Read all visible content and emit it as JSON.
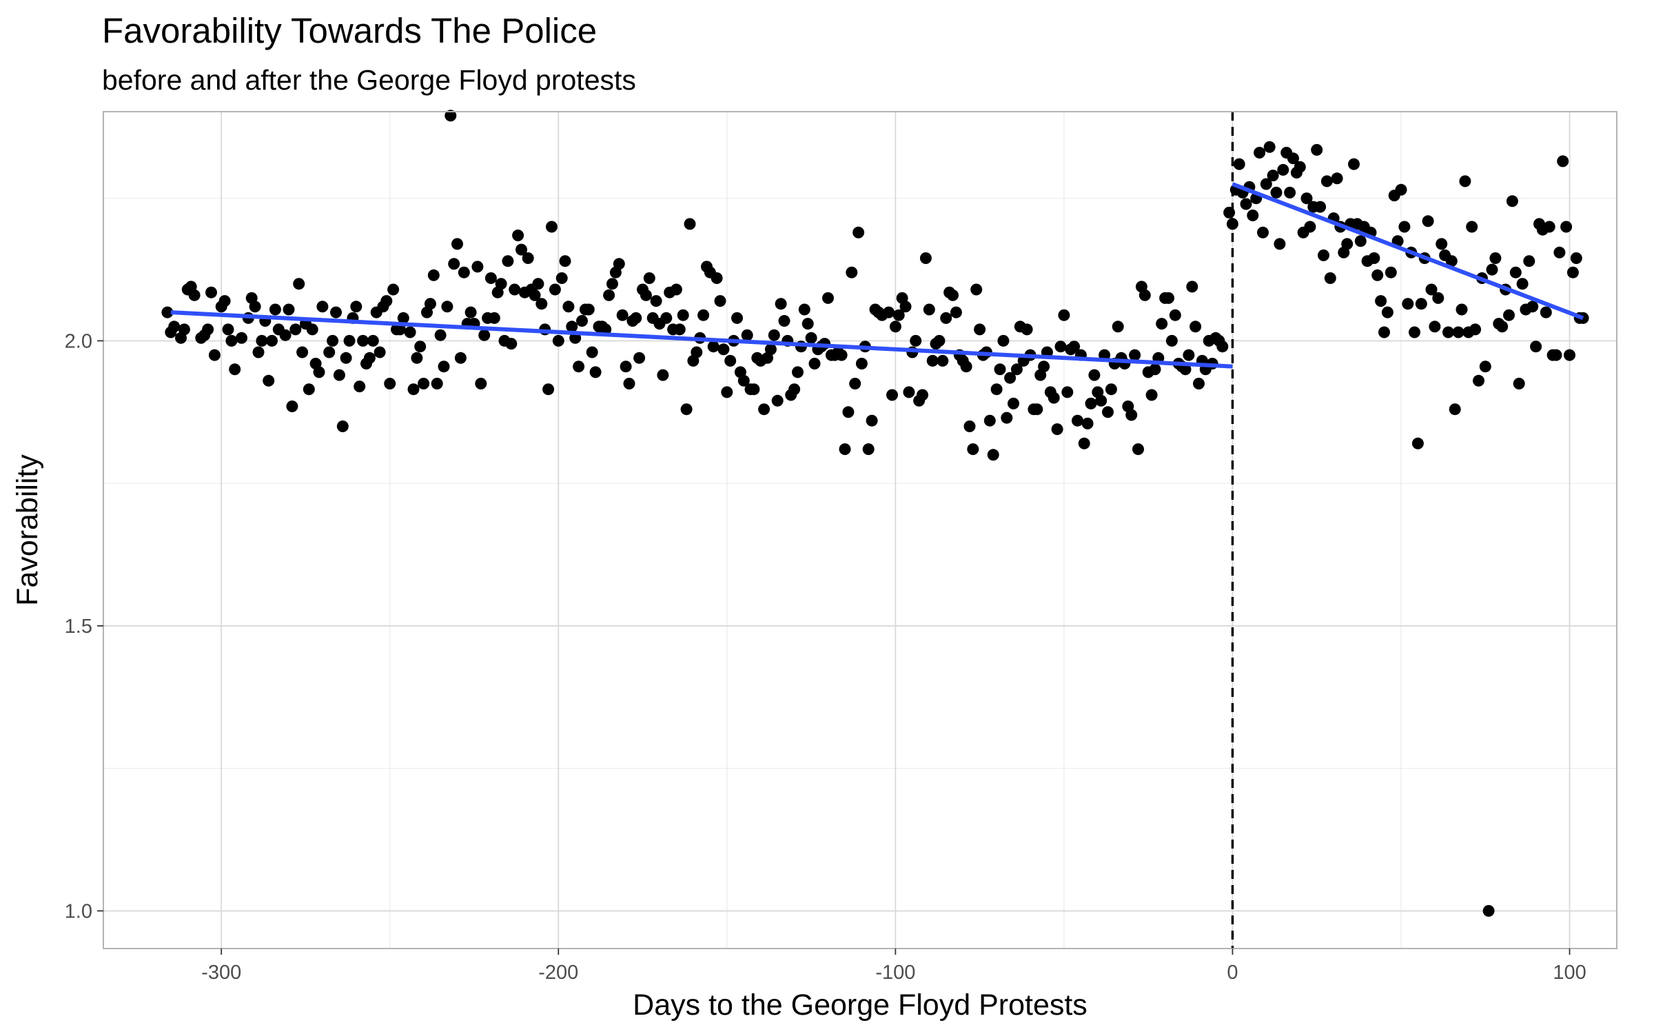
{
  "chart_data": {
    "type": "scatter",
    "title": "Favorability Towards The Police",
    "subtitle": "before and after the George Floyd protests",
    "xlabel": "Days to the George Floyd Protests",
    "ylabel": "Favorability",
    "xlim": [
      -335,
      114
    ],
    "ylim": [
      0.934,
      2.402
    ],
    "x_ticks": [
      -300,
      -200,
      -100,
      0,
      100
    ],
    "x_tick_labels": [
      "-300",
      "-200",
      "-100",
      "0",
      "100"
    ],
    "y_ticks": [
      1.0,
      1.5,
      2.0
    ],
    "y_tick_labels": [
      "1.0",
      "1.5",
      "2.0"
    ],
    "grid": true,
    "reference_line": {
      "x": 0,
      "style": "dashed",
      "color": "#000000"
    },
    "colors": {
      "points": "#000000",
      "trend": "#3050f8",
      "panel_border": "#b3b3b3",
      "grid_major": "#d9d9d9",
      "grid_minor": "#ebebeb"
    },
    "trend_lines": [
      {
        "x": [
          -315,
          0
        ],
        "y": [
          2.05,
          1.955
        ]
      },
      {
        "x": [
          0,
          104
        ],
        "y": [
          2.275,
          2.04
        ]
      }
    ],
    "points": [
      [
        -316,
        2.05
      ],
      [
        -315,
        2.015
      ],
      [
        -314,
        2.025
      ],
      [
        -312,
        2.005
      ],
      [
        -311,
        2.02
      ],
      [
        -310,
        2.09
      ],
      [
        -309,
        2.095
      ],
      [
        -308,
        2.08
      ],
      [
        -306,
        2.005
      ],
      [
        -305,
        2.01
      ],
      [
        -304,
        2.02
      ],
      [
        -303,
        2.085
      ],
      [
        -302,
        1.975
      ],
      [
        -300,
        2.06
      ],
      [
        -299,
        2.07
      ],
      [
        -298,
        2.02
      ],
      [
        -297,
        2.0
      ],
      [
        -296,
        1.95
      ],
      [
        -294,
        2.005
      ],
      [
        -292,
        2.04
      ],
      [
        -291,
        2.075
      ],
      [
        -290,
        2.06
      ],
      [
        -289,
        1.98
      ],
      [
        -288,
        2.0
      ],
      [
        -287,
        2.035
      ],
      [
        -286,
        1.93
      ],
      [
        -285,
        2.0
      ],
      [
        -284,
        2.055
      ],
      [
        -283,
        2.02
      ],
      [
        -281,
        2.01
      ],
      [
        -280,
        2.055
      ],
      [
        -279,
        1.885
      ],
      [
        -278,
        2.02
      ],
      [
        -277,
        2.1
      ],
      [
        -276,
        1.98
      ],
      [
        -275,
        2.03
      ],
      [
        -274,
        1.915
      ],
      [
        -273,
        2.02
      ],
      [
        -272,
        1.96
      ],
      [
        -271,
        1.945
      ],
      [
        -270,
        2.06
      ],
      [
        -268,
        1.98
      ],
      [
        -267,
        2.0
      ],
      [
        -266,
        2.05
      ],
      [
        -265,
        1.94
      ],
      [
        -264,
        1.85
      ],
      [
        -263,
        1.97
      ],
      [
        -262,
        2.0
      ],
      [
        -261,
        2.04
      ],
      [
        -260,
        2.06
      ],
      [
        -259,
        1.92
      ],
      [
        -258,
        2.0
      ],
      [
        -257,
        1.96
      ],
      [
        -256,
        1.97
      ],
      [
        -255,
        2.0
      ],
      [
        -254,
        2.05
      ],
      [
        -253,
        1.98
      ],
      [
        -252,
        2.06
      ],
      [
        -251,
        2.07
      ],
      [
        -250,
        1.925
      ],
      [
        -249,
        2.09
      ],
      [
        -248,
        2.02
      ],
      [
        -247,
        2.02
      ],
      [
        -246,
        2.04
      ],
      [
        -244,
        2.015
      ],
      [
        -243,
        1.915
      ],
      [
        -242,
        1.97
      ],
      [
        -241,
        1.99
      ],
      [
        -240,
        1.925
      ],
      [
        -239,
        2.05
      ],
      [
        -238,
        2.065
      ],
      [
        -237,
        2.115
      ],
      [
        -236,
        1.925
      ],
      [
        -235,
        2.01
      ],
      [
        -234,
        1.955
      ],
      [
        -233,
        2.06
      ],
      [
        -232,
        2.395
      ],
      [
        -231,
        2.135
      ],
      [
        -230,
        2.17
      ],
      [
        -229,
        1.97
      ],
      [
        -228,
        2.12
      ],
      [
        -227,
        2.03
      ],
      [
        -226,
        2.05
      ],
      [
        -225,
        2.03
      ],
      [
        -224,
        2.13
      ],
      [
        -223,
        1.925
      ],
      [
        -222,
        2.01
      ],
      [
        -221,
        2.04
      ],
      [
        -220,
        2.11
      ],
      [
        -219,
        2.04
      ],
      [
        -218,
        2.085
      ],
      [
        -217,
        2.1
      ],
      [
        -216,
        2.0
      ],
      [
        -215,
        2.14
      ],
      [
        -214,
        1.995
      ],
      [
        -213,
        2.09
      ],
      [
        -212,
        2.185
      ],
      [
        -211,
        2.16
      ],
      [
        -210,
        2.085
      ],
      [
        -209,
        2.145
      ],
      [
        -208,
        2.09
      ],
      [
        -207,
        2.08
      ],
      [
        -206,
        2.1
      ],
      [
        -205,
        2.065
      ],
      [
        -204,
        2.02
      ],
      [
        -203,
        1.915
      ],
      [
        -202,
        2.2
      ],
      [
        -201,
        2.09
      ],
      [
        -200,
        2.0
      ],
      [
        -199,
        2.11
      ],
      [
        -198,
        2.14
      ],
      [
        -197,
        2.06
      ],
      [
        -196,
        2.025
      ],
      [
        -195,
        2.005
      ],
      [
        -194,
        1.955
      ],
      [
        -193,
        2.035
      ],
      [
        -192,
        2.055
      ],
      [
        -191,
        2.055
      ],
      [
        -190,
        1.98
      ],
      [
        -189,
        1.945
      ],
      [
        -188,
        2.025
      ],
      [
        -187,
        2.025
      ],
      [
        -186,
        2.02
      ],
      [
        -185,
        2.08
      ],
      [
        -184,
        2.1
      ],
      [
        -183,
        2.12
      ],
      [
        -182,
        2.135
      ],
      [
        -181,
        2.045
      ],
      [
        -180,
        1.955
      ],
      [
        -179,
        1.925
      ],
      [
        -178,
        2.035
      ],
      [
        -177,
        2.04
      ],
      [
        -176,
        1.97
      ],
      [
        -175,
        2.09
      ],
      [
        -174,
        2.08
      ],
      [
        -173,
        2.11
      ],
      [
        -172,
        2.04
      ],
      [
        -171,
        2.07
      ],
      [
        -170,
        2.03
      ],
      [
        -169,
        1.94
      ],
      [
        -168,
        2.04
      ],
      [
        -167,
        2.085
      ],
      [
        -166,
        2.02
      ],
      [
        -165,
        2.09
      ],
      [
        -164,
        2.02
      ],
      [
        -163,
        2.045
      ],
      [
        -162,
        1.88
      ],
      [
        -161,
        2.205
      ],
      [
        -160,
        1.965
      ],
      [
        -159,
        1.98
      ],
      [
        -158,
        2.005
      ],
      [
        -157,
        2.045
      ],
      [
        -156,
        2.13
      ],
      [
        -155,
        2.12
      ],
      [
        -154,
        1.99
      ],
      [
        -153,
        2.11
      ],
      [
        -152,
        2.07
      ],
      [
        -151,
        1.985
      ],
      [
        -150,
        1.91
      ],
      [
        -149,
        1.965
      ],
      [
        -148,
        2.0
      ],
      [
        -147,
        2.04
      ],
      [
        -146,
        1.945
      ],
      [
        -145,
        1.93
      ],
      [
        -144,
        2.01
      ],
      [
        -143,
        1.915
      ],
      [
        -142,
        1.915
      ],
      [
        -141,
        1.97
      ],
      [
        -140,
        1.965
      ],
      [
        -139,
        1.88
      ],
      [
        -138,
        1.97
      ],
      [
        -137,
        1.985
      ],
      [
        -136,
        2.01
      ],
      [
        -135,
        1.895
      ],
      [
        -134,
        2.065
      ],
      [
        -133,
        2.035
      ],
      [
        -132,
        2.0
      ],
      [
        -131,
        1.905
      ],
      [
        -130,
        1.915
      ],
      [
        -129,
        1.945
      ],
      [
        -128,
        1.99
      ],
      [
        -127,
        2.055
      ],
      [
        -126,
        2.03
      ],
      [
        -125,
        2.005
      ],
      [
        -124,
        1.96
      ],
      [
        -123,
        1.985
      ],
      [
        -122,
        1.99
      ],
      [
        -121,
        1.995
      ],
      [
        -120,
        2.075
      ],
      [
        -119,
        1.975
      ],
      [
        -118,
        1.975
      ],
      [
        -117,
        1.98
      ],
      [
        -116,
        1.975
      ],
      [
        -115,
        1.81
      ],
      [
        -114,
        1.875
      ],
      [
        -113,
        2.12
      ],
      [
        -112,
        1.925
      ],
      [
        -111,
        2.19
      ],
      [
        -110,
        1.96
      ],
      [
        -109,
        1.99
      ],
      [
        -108,
        1.81
      ],
      [
        -107,
        1.86
      ],
      [
        -106,
        2.055
      ],
      [
        -105,
        2.05
      ],
      [
        -104,
        2.045
      ],
      [
        -102,
        2.05
      ],
      [
        -101,
        1.905
      ],
      [
        -100,
        2.025
      ],
      [
        -99,
        2.045
      ],
      [
        -98,
        2.075
      ],
      [
        -97,
        2.06
      ],
      [
        -96,
        1.91
      ],
      [
        -95,
        1.98
      ],
      [
        -94,
        2.0
      ],
      [
        -93,
        1.895
      ],
      [
        -92,
        1.905
      ],
      [
        -91,
        2.145
      ],
      [
        -90,
        2.055
      ],
      [
        -89,
        1.965
      ],
      [
        -88,
        1.995
      ],
      [
        -87,
        2.0
      ],
      [
        -86,
        1.965
      ],
      [
        -85,
        2.04
      ],
      [
        -84,
        2.085
      ],
      [
        -83,
        2.08
      ],
      [
        -82,
        2.05
      ],
      [
        -81,
        1.975
      ],
      [
        -80,
        1.965
      ],
      [
        -79,
        1.955
      ],
      [
        -78,
        1.85
      ],
      [
        -77,
        1.81
      ],
      [
        -76,
        2.09
      ],
      [
        -75,
        2.02
      ],
      [
        -74,
        1.975
      ],
      [
        -73,
        1.98
      ],
      [
        -72,
        1.86
      ],
      [
        -71,
        1.8
      ],
      [
        -70,
        1.915
      ],
      [
        -69,
        1.95
      ],
      [
        -68,
        2.0
      ],
      [
        -67,
        1.865
      ],
      [
        -66,
        1.935
      ],
      [
        -65,
        1.89
      ],
      [
        -64,
        1.95
      ],
      [
        -63,
        2.025
      ],
      [
        -62,
        1.965
      ],
      [
        -61,
        2.02
      ],
      [
        -60,
        1.975
      ],
      [
        -59,
        1.88
      ],
      [
        -58,
        1.88
      ],
      [
        -57,
        1.94
      ],
      [
        -56,
        1.955
      ],
      [
        -55,
        1.98
      ],
      [
        -54,
        1.91
      ],
      [
        -53,
        1.9
      ],
      [
        -52,
        1.845
      ],
      [
        -51,
        1.99
      ],
      [
        -50,
        2.045
      ],
      [
        -49,
        1.91
      ],
      [
        -48,
        1.985
      ],
      [
        -47,
        1.99
      ],
      [
        -46,
        1.86
      ],
      [
        -45,
        1.975
      ],
      [
        -44,
        1.82
      ],
      [
        -43,
        1.855
      ],
      [
        -42,
        1.89
      ],
      [
        -41,
        1.94
      ],
      [
        -40,
        1.91
      ],
      [
        -39,
        1.895
      ],
      [
        -38,
        1.975
      ],
      [
        -37,
        1.875
      ],
      [
        -36,
        1.915
      ],
      [
        -35,
        1.96
      ],
      [
        -34,
        2.025
      ],
      [
        -33,
        1.97
      ],
      [
        -32,
        1.96
      ],
      [
        -31,
        1.885
      ],
      [
        -30,
        1.87
      ],
      [
        -29,
        1.975
      ],
      [
        -28,
        1.81
      ],
      [
        -27,
        2.095
      ],
      [
        -26,
        2.08
      ],
      [
        -25,
        1.945
      ],
      [
        -24,
        1.905
      ],
      [
        -23,
        1.95
      ],
      [
        -22,
        1.97
      ],
      [
        -21,
        2.03
      ],
      [
        -20,
        2.075
      ],
      [
        -19,
        2.075
      ],
      [
        -18,
        2.0
      ],
      [
        -17,
        2.045
      ],
      [
        -16,
        1.96
      ],
      [
        -15,
        1.955
      ],
      [
        -14,
        1.95
      ],
      [
        -13,
        1.975
      ],
      [
        -12,
        2.095
      ],
      [
        -11,
        2.025
      ],
      [
        -10,
        1.925
      ],
      [
        -9,
        1.965
      ],
      [
        -8,
        1.95
      ],
      [
        -7,
        2.0
      ],
      [
        -6,
        1.96
      ],
      [
        -5,
        2.005
      ],
      [
        -4,
        2.0
      ],
      [
        -3,
        1.99
      ],
      [
        -1,
        2.225
      ],
      [
        0,
        2.205
      ],
      [
        1,
        2.265
      ],
      [
        2,
        2.31
      ],
      [
        3,
        2.26
      ],
      [
        4,
        2.24
      ],
      [
        5,
        2.27
      ],
      [
        6,
        2.22
      ],
      [
        7,
        2.25
      ],
      [
        8,
        2.33
      ],
      [
        9,
        2.19
      ],
      [
        10,
        2.275
      ],
      [
        11,
        2.34
      ],
      [
        12,
        2.29
      ],
      [
        13,
        2.26
      ],
      [
        14,
        2.17
      ],
      [
        15,
        2.3
      ],
      [
        16,
        2.33
      ],
      [
        17,
        2.26
      ],
      [
        18,
        2.32
      ],
      [
        19,
        2.295
      ],
      [
        20,
        2.305
      ],
      [
        21,
        2.19
      ],
      [
        22,
        2.25
      ],
      [
        23,
        2.2
      ],
      [
        24,
        2.235
      ],
      [
        25,
        2.335
      ],
      [
        26,
        2.235
      ],
      [
        27,
        2.15
      ],
      [
        28,
        2.28
      ],
      [
        29,
        2.11
      ],
      [
        30,
        2.215
      ],
      [
        31,
        2.285
      ],
      [
        32,
        2.2
      ],
      [
        33,
        2.155
      ],
      [
        34,
        2.17
      ],
      [
        35,
        2.205
      ],
      [
        36,
        2.31
      ],
      [
        37,
        2.205
      ],
      [
        38,
        2.175
      ],
      [
        39,
        2.2
      ],
      [
        40,
        2.14
      ],
      [
        41,
        2.19
      ],
      [
        42,
        2.145
      ],
      [
        43,
        2.115
      ],
      [
        44,
        2.07
      ],
      [
        45,
        2.015
      ],
      [
        46,
        2.05
      ],
      [
        47,
        2.12
      ],
      [
        48,
        2.255
      ],
      [
        49,
        2.175
      ],
      [
        50,
        2.265
      ],
      [
        51,
        2.2
      ],
      [
        52,
        2.065
      ],
      [
        53,
        2.155
      ],
      [
        54,
        2.015
      ],
      [
        55,
        1.82
      ],
      [
        56,
        2.065
      ],
      [
        57,
        2.145
      ],
      [
        58,
        2.21
      ],
      [
        59,
        2.09
      ],
      [
        60,
        2.025
      ],
      [
        61,
        2.075
      ],
      [
        62,
        2.17
      ],
      [
        63,
        2.15
      ],
      [
        64,
        2.015
      ],
      [
        65,
        2.14
      ],
      [
        66,
        1.88
      ],
      [
        67,
        2.015
      ],
      [
        68,
        2.055
      ],
      [
        69,
        2.28
      ],
      [
        70,
        2.015
      ],
      [
        71,
        2.2
      ],
      [
        72,
        2.02
      ],
      [
        73,
        1.93
      ],
      [
        74,
        2.11
      ],
      [
        75,
        1.955
      ],
      [
        76,
        1.0
      ],
      [
        77,
        2.125
      ],
      [
        78,
        2.145
      ],
      [
        79,
        2.03
      ],
      [
        80,
        2.025
      ],
      [
        81,
        2.09
      ],
      [
        82,
        2.045
      ],
      [
        83,
        2.245
      ],
      [
        84,
        2.12
      ],
      [
        85,
        1.925
      ],
      [
        86,
        2.1
      ],
      [
        87,
        2.055
      ],
      [
        88,
        2.14
      ],
      [
        89,
        2.06
      ],
      [
        90,
        1.99
      ],
      [
        91,
        2.205
      ],
      [
        92,
        2.195
      ],
      [
        93,
        2.05
      ],
      [
        94,
        2.2
      ],
      [
        95,
        1.975
      ],
      [
        96,
        1.975
      ],
      [
        97,
        2.155
      ],
      [
        98,
        2.315
      ],
      [
        99,
        2.2
      ],
      [
        100,
        1.975
      ],
      [
        101,
        2.12
      ],
      [
        102,
        2.145
      ],
      [
        103,
        2.04
      ],
      [
        104,
        2.04
      ]
    ]
  }
}
